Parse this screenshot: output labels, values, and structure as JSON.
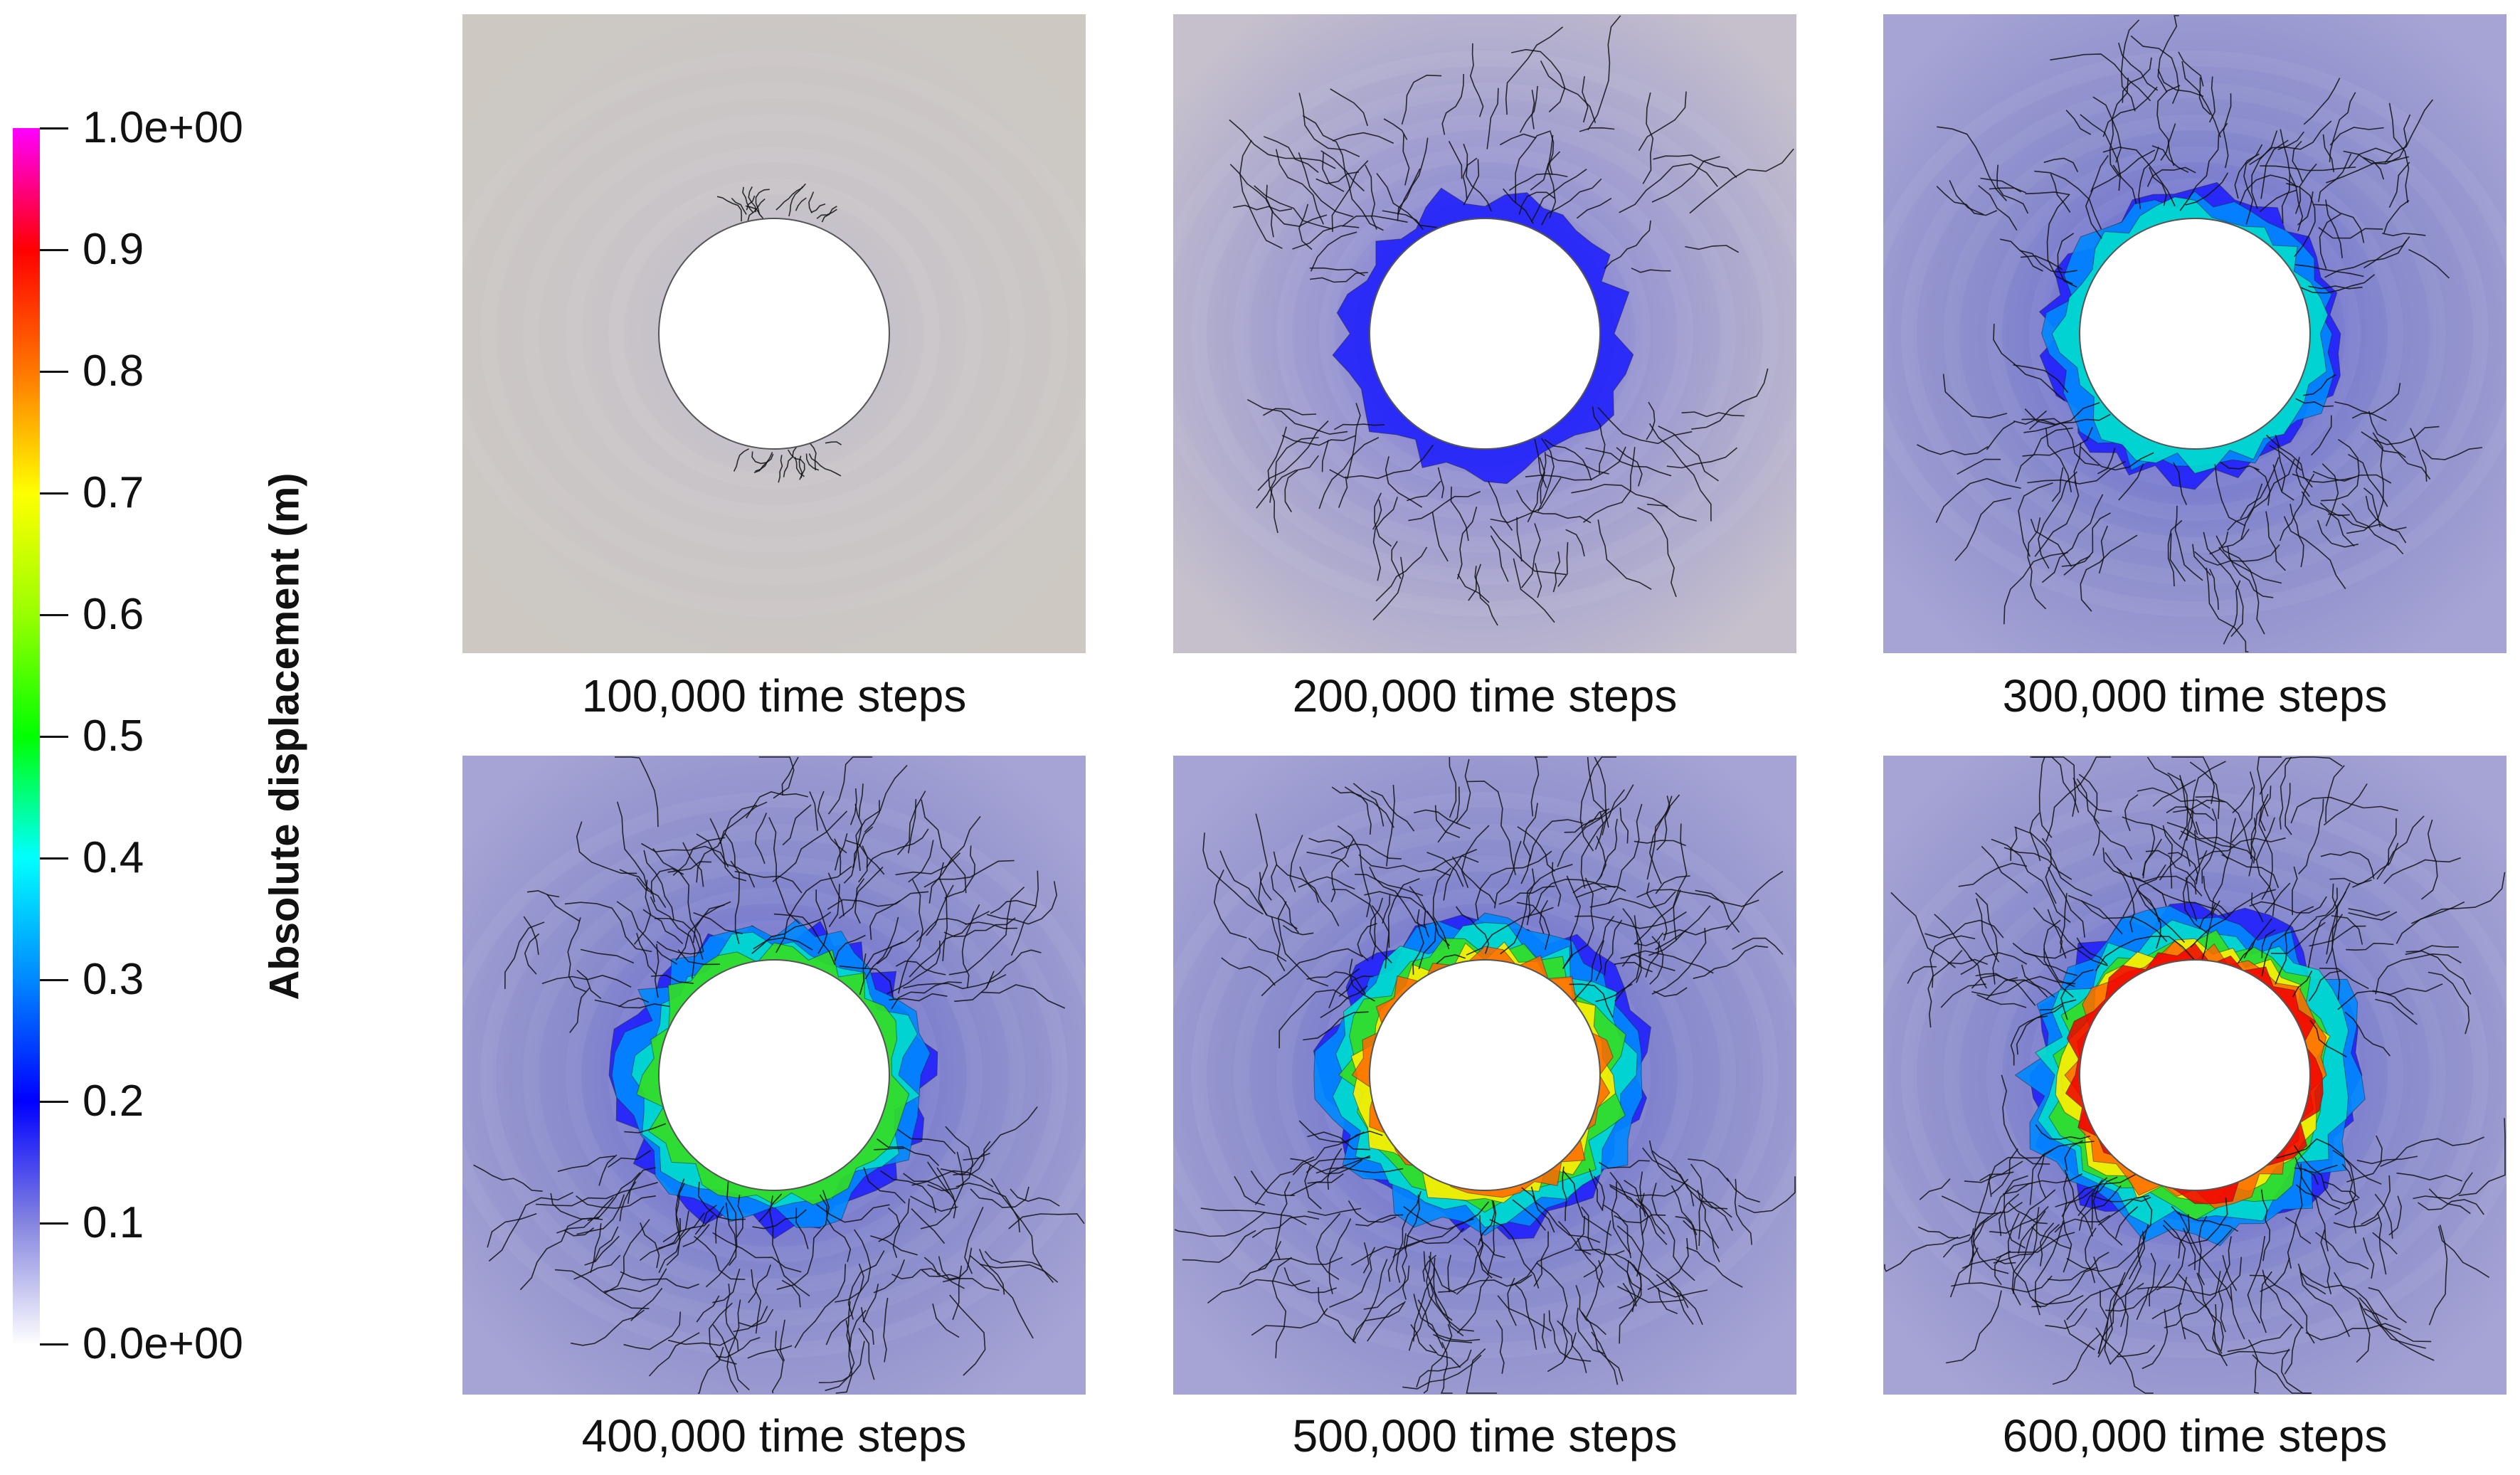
{
  "legend": {
    "title": "Absolute displacement (m)",
    "min": 0,
    "max": 1,
    "ticks": [
      {
        "value": 1.0,
        "label": "1.0e+00"
      },
      {
        "value": 0.9,
        "label": "0.9"
      },
      {
        "value": 0.8,
        "label": "0.8"
      },
      {
        "value": 0.7,
        "label": "0.7"
      },
      {
        "value": 0.6,
        "label": "0.6"
      },
      {
        "value": 0.5,
        "label": "0.5"
      },
      {
        "value": 0.4,
        "label": "0.4"
      },
      {
        "value": 0.3,
        "label": "0.3"
      },
      {
        "value": 0.2,
        "label": "0.2"
      },
      {
        "value": 0.1,
        "label": "0.1"
      },
      {
        "value": 0.0,
        "label": "0.0e+00"
      }
    ],
    "colormap": [
      "#ffffff",
      "#8585e0",
      "#0000ff",
      "#0088ff",
      "#00ffff",
      "#00ff00",
      "#99ff00",
      "#ffff00",
      "#ff7700",
      "#ff0000",
      "#ff00ff"
    ]
  },
  "panels": [
    {
      "caption": "100,000 time steps",
      "time_steps": 100000
    },
    {
      "caption": "200,000 time steps",
      "time_steps": 200000
    },
    {
      "caption": "300,000 time steps",
      "time_steps": 300000
    },
    {
      "caption": "400,000 time steps",
      "time_steps": 400000
    },
    {
      "caption": "500,000 time steps",
      "time_steps": 500000
    },
    {
      "caption": "600,000 time steps",
      "time_steps": 600000
    }
  ],
  "colors": {
    "background_gray": "#cdc9c2",
    "field_blue": "#8a8ccc",
    "crack_lines": "#111111",
    "hole": "#ffffff"
  }
}
